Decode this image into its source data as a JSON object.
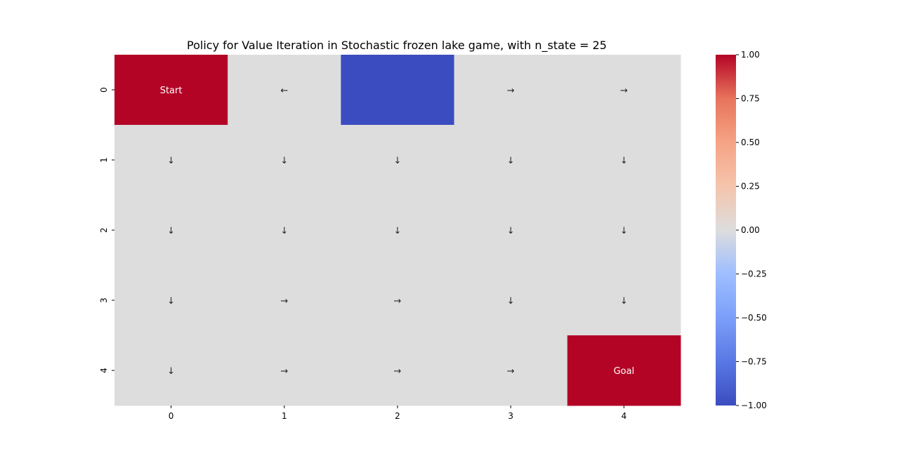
{
  "chart_data": {
    "type": "heatmap",
    "title": "Policy for Value Iteration in Stochastic frozen lake game, with n_state = 25",
    "xlabel": "",
    "ylabel": "",
    "x_tick_labels": [
      "0",
      "1",
      "2",
      "3",
      "4"
    ],
    "y_tick_labels": [
      "0",
      "1",
      "2",
      "3",
      "4"
    ],
    "colormap": "coolwarm",
    "vmin": -1.0,
    "vmax": 1.0,
    "values": [
      [
        1,
        0,
        -1,
        0,
        0
      ],
      [
        0,
        0,
        0,
        0,
        0
      ],
      [
        0,
        0,
        0,
        0,
        0
      ],
      [
        0,
        0,
        0,
        0,
        0
      ],
      [
        0,
        0,
        0,
        0,
        1
      ]
    ],
    "annotations": [
      [
        "Start",
        "←",
        "",
        "→",
        "→"
      ],
      [
        "↓",
        "↓",
        "↓",
        "↓",
        "↓"
      ],
      [
        "↓",
        "↓",
        "↓",
        "↓",
        "↓"
      ],
      [
        "↓",
        "→",
        "→",
        "↓",
        "↓"
      ],
      [
        "↓",
        "→",
        "→",
        "→",
        "Goal"
      ]
    ],
    "colorbar": {
      "ticks": [
        1.0,
        0.75,
        0.5,
        0.25,
        0.0,
        -0.25,
        -0.5,
        -0.75,
        -1.0
      ],
      "tick_labels": [
        "1.00",
        "0.75",
        "0.50",
        "0.25",
        "0.00",
        "−0.25",
        "−0.50",
        "−0.75",
        "−1.00"
      ]
    },
    "colors": {
      "high": "#b40426",
      "mid": "#dddddd",
      "low": "#3b4cc0",
      "text_dark_cell": "#ffffff",
      "text_light_cell": "#262626"
    },
    "grid": false
  }
}
